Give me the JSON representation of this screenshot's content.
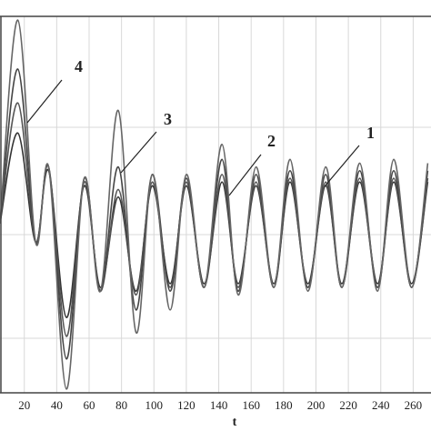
{
  "chart_data": {
    "type": "line",
    "x": [
      5,
      16,
      27,
      35,
      46,
      57,
      67,
      78,
      89,
      99,
      110,
      120,
      131,
      142,
      152,
      163,
      174,
      184,
      195,
      206,
      216,
      227,
      238,
      248,
      259,
      269
    ],
    "series": [
      {
        "name": "1",
        "color": "#333333",
        "values": [
          45,
          69,
          40,
          59,
          20,
          55,
          28,
          52,
          27,
          55,
          29,
          55,
          29,
          56,
          29,
          55,
          29,
          56,
          29,
          55,
          29,
          56,
          29,
          56,
          29,
          56
        ]
      },
      {
        "name": "2",
        "color": "#555555",
        "values": [
          45,
          77,
          40,
          60,
          15,
          56,
          27,
          54,
          26,
          56,
          28,
          56,
          28,
          58,
          28,
          56,
          28,
          57,
          28,
          56,
          28,
          57,
          28,
          57,
          28,
          57
        ]
      },
      {
        "name": "3",
        "color": "#444444",
        "values": [
          45,
          86,
          40,
          60,
          9,
          57,
          27,
          60,
          22,
          58,
          27,
          57,
          28,
          62,
          27,
          58,
          28,
          59,
          28,
          58,
          28,
          59,
          28,
          59,
          28,
          59
        ]
      },
      {
        "name": "4",
        "color": "#666666",
        "values": [
          45,
          99,
          40,
          60,
          1,
          57,
          27,
          75,
          16,
          58,
          22,
          58,
          28,
          66,
          26,
          60,
          28,
          62,
          27,
          60,
          28,
          61,
          27,
          62,
          28,
          61
        ]
      }
    ],
    "x_label": "t",
    "xlim": [
      5,
      271
    ],
    "ylim": [
      0,
      100
    ],
    "xticks": [
      20,
      40,
      60,
      80,
      100,
      120,
      140,
      160,
      180,
      200,
      220,
      240,
      260
    ],
    "grid": true
  }
}
